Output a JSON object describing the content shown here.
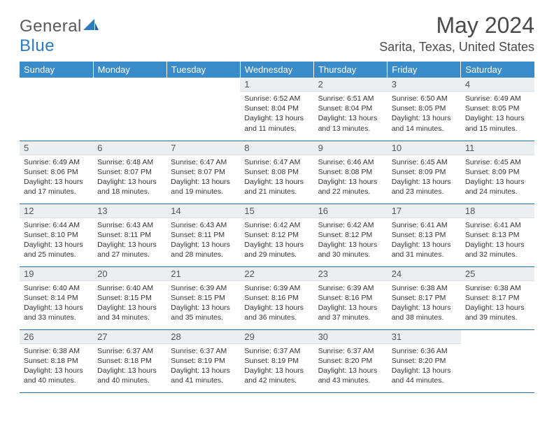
{
  "brand": {
    "part1": "General",
    "part2": "Blue"
  },
  "title": "May 2024",
  "location": "Sarita, Texas, United States",
  "colors": {
    "header_bg": "#3a8bc9",
    "row_divider": "#2d6fa3",
    "daynum_bg": "#eceff1",
    "brand_gray": "#5a5a5a",
    "brand_blue": "#2b7bbf"
  },
  "fonts": {
    "title_size_pt": 24,
    "location_size_pt": 13,
    "header_cell_size_pt": 10,
    "daynum_size_pt": 10,
    "body_size_pt": 8
  },
  "weekdays": [
    "Sunday",
    "Monday",
    "Tuesday",
    "Wednesday",
    "Thursday",
    "Friday",
    "Saturday"
  ],
  "weeks": [
    [
      null,
      null,
      null,
      {
        "n": "1",
        "sr": "6:52 AM",
        "ss": "8:04 PM",
        "dl": "13 hours and 11 minutes."
      },
      {
        "n": "2",
        "sr": "6:51 AM",
        "ss": "8:04 PM",
        "dl": "13 hours and 13 minutes."
      },
      {
        "n": "3",
        "sr": "6:50 AM",
        "ss": "8:05 PM",
        "dl": "13 hours and 14 minutes."
      },
      {
        "n": "4",
        "sr": "6:49 AM",
        "ss": "8:05 PM",
        "dl": "13 hours and 15 minutes."
      }
    ],
    [
      {
        "n": "5",
        "sr": "6:49 AM",
        "ss": "8:06 PM",
        "dl": "13 hours and 17 minutes."
      },
      {
        "n": "6",
        "sr": "6:48 AM",
        "ss": "8:07 PM",
        "dl": "13 hours and 18 minutes."
      },
      {
        "n": "7",
        "sr": "6:47 AM",
        "ss": "8:07 PM",
        "dl": "13 hours and 19 minutes."
      },
      {
        "n": "8",
        "sr": "6:47 AM",
        "ss": "8:08 PM",
        "dl": "13 hours and 21 minutes."
      },
      {
        "n": "9",
        "sr": "6:46 AM",
        "ss": "8:08 PM",
        "dl": "13 hours and 22 minutes."
      },
      {
        "n": "10",
        "sr": "6:45 AM",
        "ss": "8:09 PM",
        "dl": "13 hours and 23 minutes."
      },
      {
        "n": "11",
        "sr": "6:45 AM",
        "ss": "8:09 PM",
        "dl": "13 hours and 24 minutes."
      }
    ],
    [
      {
        "n": "12",
        "sr": "6:44 AM",
        "ss": "8:10 PM",
        "dl": "13 hours and 25 minutes."
      },
      {
        "n": "13",
        "sr": "6:43 AM",
        "ss": "8:11 PM",
        "dl": "13 hours and 27 minutes."
      },
      {
        "n": "14",
        "sr": "6:43 AM",
        "ss": "8:11 PM",
        "dl": "13 hours and 28 minutes."
      },
      {
        "n": "15",
        "sr": "6:42 AM",
        "ss": "8:12 PM",
        "dl": "13 hours and 29 minutes."
      },
      {
        "n": "16",
        "sr": "6:42 AM",
        "ss": "8:12 PM",
        "dl": "13 hours and 30 minutes."
      },
      {
        "n": "17",
        "sr": "6:41 AM",
        "ss": "8:13 PM",
        "dl": "13 hours and 31 minutes."
      },
      {
        "n": "18",
        "sr": "6:41 AM",
        "ss": "8:13 PM",
        "dl": "13 hours and 32 minutes."
      }
    ],
    [
      {
        "n": "19",
        "sr": "6:40 AM",
        "ss": "8:14 PM",
        "dl": "13 hours and 33 minutes."
      },
      {
        "n": "20",
        "sr": "6:40 AM",
        "ss": "8:15 PM",
        "dl": "13 hours and 34 minutes."
      },
      {
        "n": "21",
        "sr": "6:39 AM",
        "ss": "8:15 PM",
        "dl": "13 hours and 35 minutes."
      },
      {
        "n": "22",
        "sr": "6:39 AM",
        "ss": "8:16 PM",
        "dl": "13 hours and 36 minutes."
      },
      {
        "n": "23",
        "sr": "6:39 AM",
        "ss": "8:16 PM",
        "dl": "13 hours and 37 minutes."
      },
      {
        "n": "24",
        "sr": "6:38 AM",
        "ss": "8:17 PM",
        "dl": "13 hours and 38 minutes."
      },
      {
        "n": "25",
        "sr": "6:38 AM",
        "ss": "8:17 PM",
        "dl": "13 hours and 39 minutes."
      }
    ],
    [
      {
        "n": "26",
        "sr": "6:38 AM",
        "ss": "8:18 PM",
        "dl": "13 hours and 40 minutes."
      },
      {
        "n": "27",
        "sr": "6:37 AM",
        "ss": "8:18 PM",
        "dl": "13 hours and 40 minutes."
      },
      {
        "n": "28",
        "sr": "6:37 AM",
        "ss": "8:19 PM",
        "dl": "13 hours and 41 minutes."
      },
      {
        "n": "29",
        "sr": "6:37 AM",
        "ss": "8:19 PM",
        "dl": "13 hours and 42 minutes."
      },
      {
        "n": "30",
        "sr": "6:37 AM",
        "ss": "8:20 PM",
        "dl": "13 hours and 43 minutes."
      },
      {
        "n": "31",
        "sr": "6:36 AM",
        "ss": "8:20 PM",
        "dl": "13 hours and 44 minutes."
      },
      null
    ]
  ],
  "labels": {
    "sunrise": "Sunrise:",
    "sunset": "Sunset:",
    "daylight": "Daylight:"
  }
}
